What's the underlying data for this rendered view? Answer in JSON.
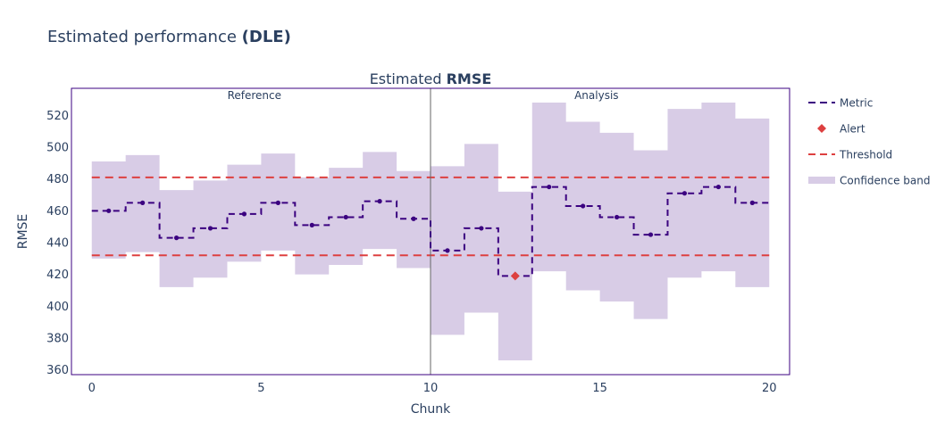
{
  "figure": {
    "title_prefix": "Estimated performance ",
    "title_bold": "(DLE)"
  },
  "chart_data": {
    "type": "line",
    "title_prefix": "Estimated ",
    "title_bold": "RMSE",
    "xlabel": "Chunk",
    "ylabel": "RMSE",
    "xlim": [
      -0.6,
      20.6
    ],
    "ylim": [
      357,
      537
    ],
    "x_ticks": [
      0,
      5,
      10,
      15,
      20
    ],
    "y_ticks": [
      360,
      380,
      400,
      420,
      440,
      460,
      480,
      500,
      520
    ],
    "grid": false,
    "legend_position": "right",
    "period_divider_x": 10,
    "periods": [
      {
        "label": "Reference",
        "center_x": 4.8
      },
      {
        "label": "Analysis",
        "center_x": 14.9
      }
    ],
    "thresholds": {
      "upper": 481,
      "lower": 432
    },
    "chunks": [
      {
        "x": 0.5,
        "value": 460,
        "lower": 430,
        "upper": 491
      },
      {
        "x": 1.5,
        "value": 465,
        "lower": 434,
        "upper": 495
      },
      {
        "x": 2.5,
        "value": 443,
        "lower": 412,
        "upper": 473
      },
      {
        "x": 3.5,
        "value": 449,
        "lower": 418,
        "upper": 479
      },
      {
        "x": 4.5,
        "value": 458,
        "lower": 428,
        "upper": 489
      },
      {
        "x": 5.5,
        "value": 465,
        "lower": 435,
        "upper": 496
      },
      {
        "x": 6.5,
        "value": 451,
        "lower": 420,
        "upper": 481
      },
      {
        "x": 7.5,
        "value": 456,
        "lower": 426,
        "upper": 487
      },
      {
        "x": 8.5,
        "value": 466,
        "lower": 436,
        "upper": 497
      },
      {
        "x": 9.5,
        "value": 455,
        "lower": 424,
        "upper": 485
      },
      {
        "x": 10.5,
        "value": 435,
        "lower": 382,
        "upper": 488
      },
      {
        "x": 11.5,
        "value": 449,
        "lower": 396,
        "upper": 502
      },
      {
        "x": 12.5,
        "value": 419,
        "lower": 366,
        "upper": 472,
        "alert": true
      },
      {
        "x": 13.5,
        "value": 475,
        "lower": 422,
        "upper": 528
      },
      {
        "x": 14.5,
        "value": 463,
        "lower": 410,
        "upper": 516
      },
      {
        "x": 15.5,
        "value": 456,
        "lower": 403,
        "upper": 509
      },
      {
        "x": 16.5,
        "value": 445,
        "lower": 392,
        "upper": 498
      },
      {
        "x": 17.5,
        "value": 471,
        "lower": 418,
        "upper": 524
      },
      {
        "x": 18.5,
        "value": 475,
        "lower": 422,
        "upper": 528
      },
      {
        "x": 19.5,
        "value": 465,
        "lower": 412,
        "upper": 518
      }
    ],
    "legend": [
      {
        "label": "Metric",
        "kind": "dash-line",
        "color": "#3b0280"
      },
      {
        "label": "Alert",
        "kind": "diamond",
        "color": "#dd4040"
      },
      {
        "label": "Threshold",
        "kind": "dash-line",
        "color": "#dd4040"
      },
      {
        "label": "Confidence band",
        "kind": "band",
        "color": "#d8cce6"
      }
    ],
    "colors": {
      "metric": "#3b0280",
      "alert": "#dd4040",
      "threshold": "#dd4040",
      "band": "#d8cce6",
      "frame": "#3b0280",
      "divider": "#666666"
    }
  }
}
